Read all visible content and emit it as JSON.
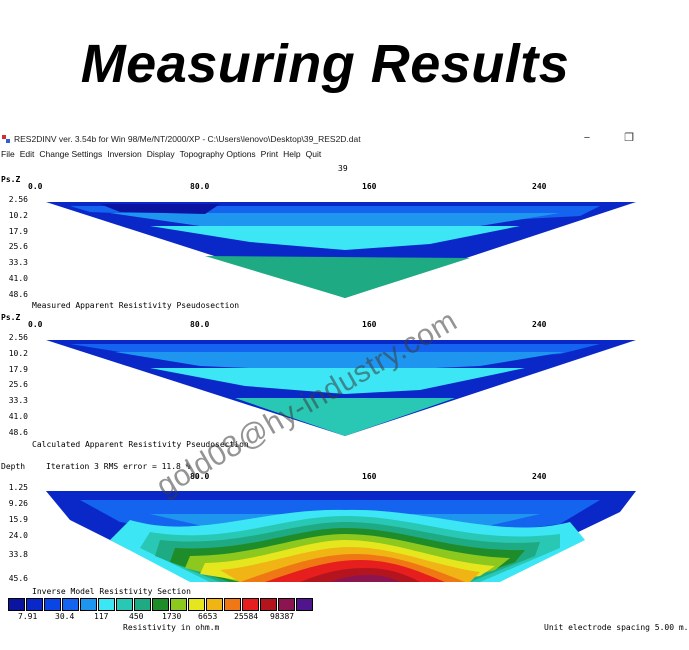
{
  "banner": {
    "title": "Measuring Results"
  },
  "window": {
    "title": "RES2DINV ver. 3.54b for Win 98/Me/NT/2000/XP - C:\\Users\\lenovo\\Desktop\\39_RES2D.dat",
    "minimize_glyph": "−",
    "restore_glyph": "❐"
  },
  "menu": [
    "File",
    "Edit",
    "Change Settings",
    "Inversion",
    "Display",
    "Topography Options",
    "Print",
    "Help",
    "Quit"
  ],
  "plot_header": {
    "number": "39"
  },
  "x_axis_ticks": [
    "0.0",
    "80.0",
    "160",
    "240"
  ],
  "panels": {
    "measured": {
      "axis_label": "Ps.Z",
      "depths": [
        "2.56",
        "10.2",
        "17.9",
        "25.6",
        "33.3",
        "41.0",
        "48.6"
      ],
      "caption": "Measured Apparent Resistivity Pseudosection"
    },
    "calculated": {
      "axis_label": "Ps.Z",
      "depths": [
        "2.56",
        "10.2",
        "17.9",
        "25.6",
        "33.3",
        "41.0",
        "48.6"
      ],
      "caption": "Calculated Apparent Resistivity Pseudosection"
    },
    "inverse": {
      "axis_label": "Depth",
      "iteration": "Iteration 3 RMS error = 11.8 %",
      "depths": [
        "1.25",
        "9.26",
        "15.9",
        "24.0",
        "33.8",
        "45.6"
      ],
      "caption": "Inverse Model Resistivity Section"
    }
  },
  "legend": {
    "colors": [
      "#0a14a0",
      "#0a28c8",
      "#0a46e6",
      "#1464f0",
      "#1e96f0",
      "#3ce6f5",
      "#28c8b4",
      "#1eaa82",
      "#1e8c28",
      "#8cc81e",
      "#e6e61e",
      "#f0b414",
      "#f07814",
      "#e61e1e",
      "#b4141e",
      "#8c1450",
      "#50148c"
    ],
    "values": [
      "7.91",
      "30.4",
      "117",
      "450",
      "1730",
      "6653",
      "25584",
      "98387"
    ],
    "unit_label": "Resistivity in ohm.m",
    "electrode_spacing": "Unit electrode spacing 5.00 m."
  },
  "watermark": "gold08@hy-industry.com"
}
